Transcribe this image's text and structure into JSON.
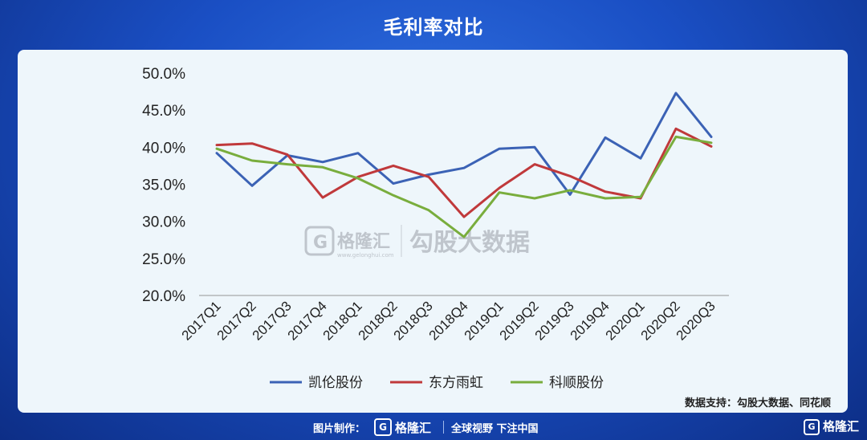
{
  "title": "毛利率对比",
  "watermark": {
    "logo_letter": "G",
    "logo_name": "格隆汇",
    "logo_url": "www.gelonghui.com",
    "text": "勾股大数据"
  },
  "source": "数据支持：勾股大数据、同花顺",
  "footer": {
    "credit": "图片制作：",
    "logo_letter": "G",
    "logo_name": "格隆汇",
    "slogan": "全球视野 下注中国"
  },
  "corner_logo": {
    "letter": "G",
    "name": "格隆汇"
  },
  "chart_data": {
    "type": "line",
    "title": "毛利率对比",
    "categories": [
      "2017Q1",
      "2017Q2",
      "2017Q3",
      "2017Q4",
      "2018Q1",
      "2018Q2",
      "2018Q3",
      "2018Q4",
      "2019Q1",
      "2019Q2",
      "2019Q3",
      "2019Q4",
      "2020Q1",
      "2020Q2",
      "2020Q3"
    ],
    "ylim": [
      20,
      50
    ],
    "yticks": [
      "50.0%",
      "45.0%",
      "40.0%",
      "35.0%",
      "30.0%",
      "25.0%",
      "20.0%"
    ],
    "series": [
      {
        "name": "凯伦股份",
        "color": "#3b62b5",
        "values": [
          39.2,
          34.8,
          38.9,
          38.0,
          39.2,
          35.1,
          36.3,
          37.2,
          39.8,
          40.0,
          33.6,
          41.3,
          38.5,
          47.3,
          41.4
        ]
      },
      {
        "name": "东方雨虹",
        "color": "#c0393b",
        "values": [
          40.3,
          40.5,
          39.0,
          33.2,
          36.0,
          37.5,
          36.0,
          30.6,
          34.5,
          37.7,
          36.1,
          34.0,
          33.1,
          42.5,
          40.1
        ]
      },
      {
        "name": "科顺股份",
        "color": "#79ad3d",
        "values": [
          39.8,
          38.2,
          37.7,
          37.3,
          35.8,
          33.5,
          31.5,
          27.9,
          33.9,
          33.1,
          34.2,
          33.1,
          33.3,
          41.4,
          40.6
        ]
      }
    ]
  }
}
